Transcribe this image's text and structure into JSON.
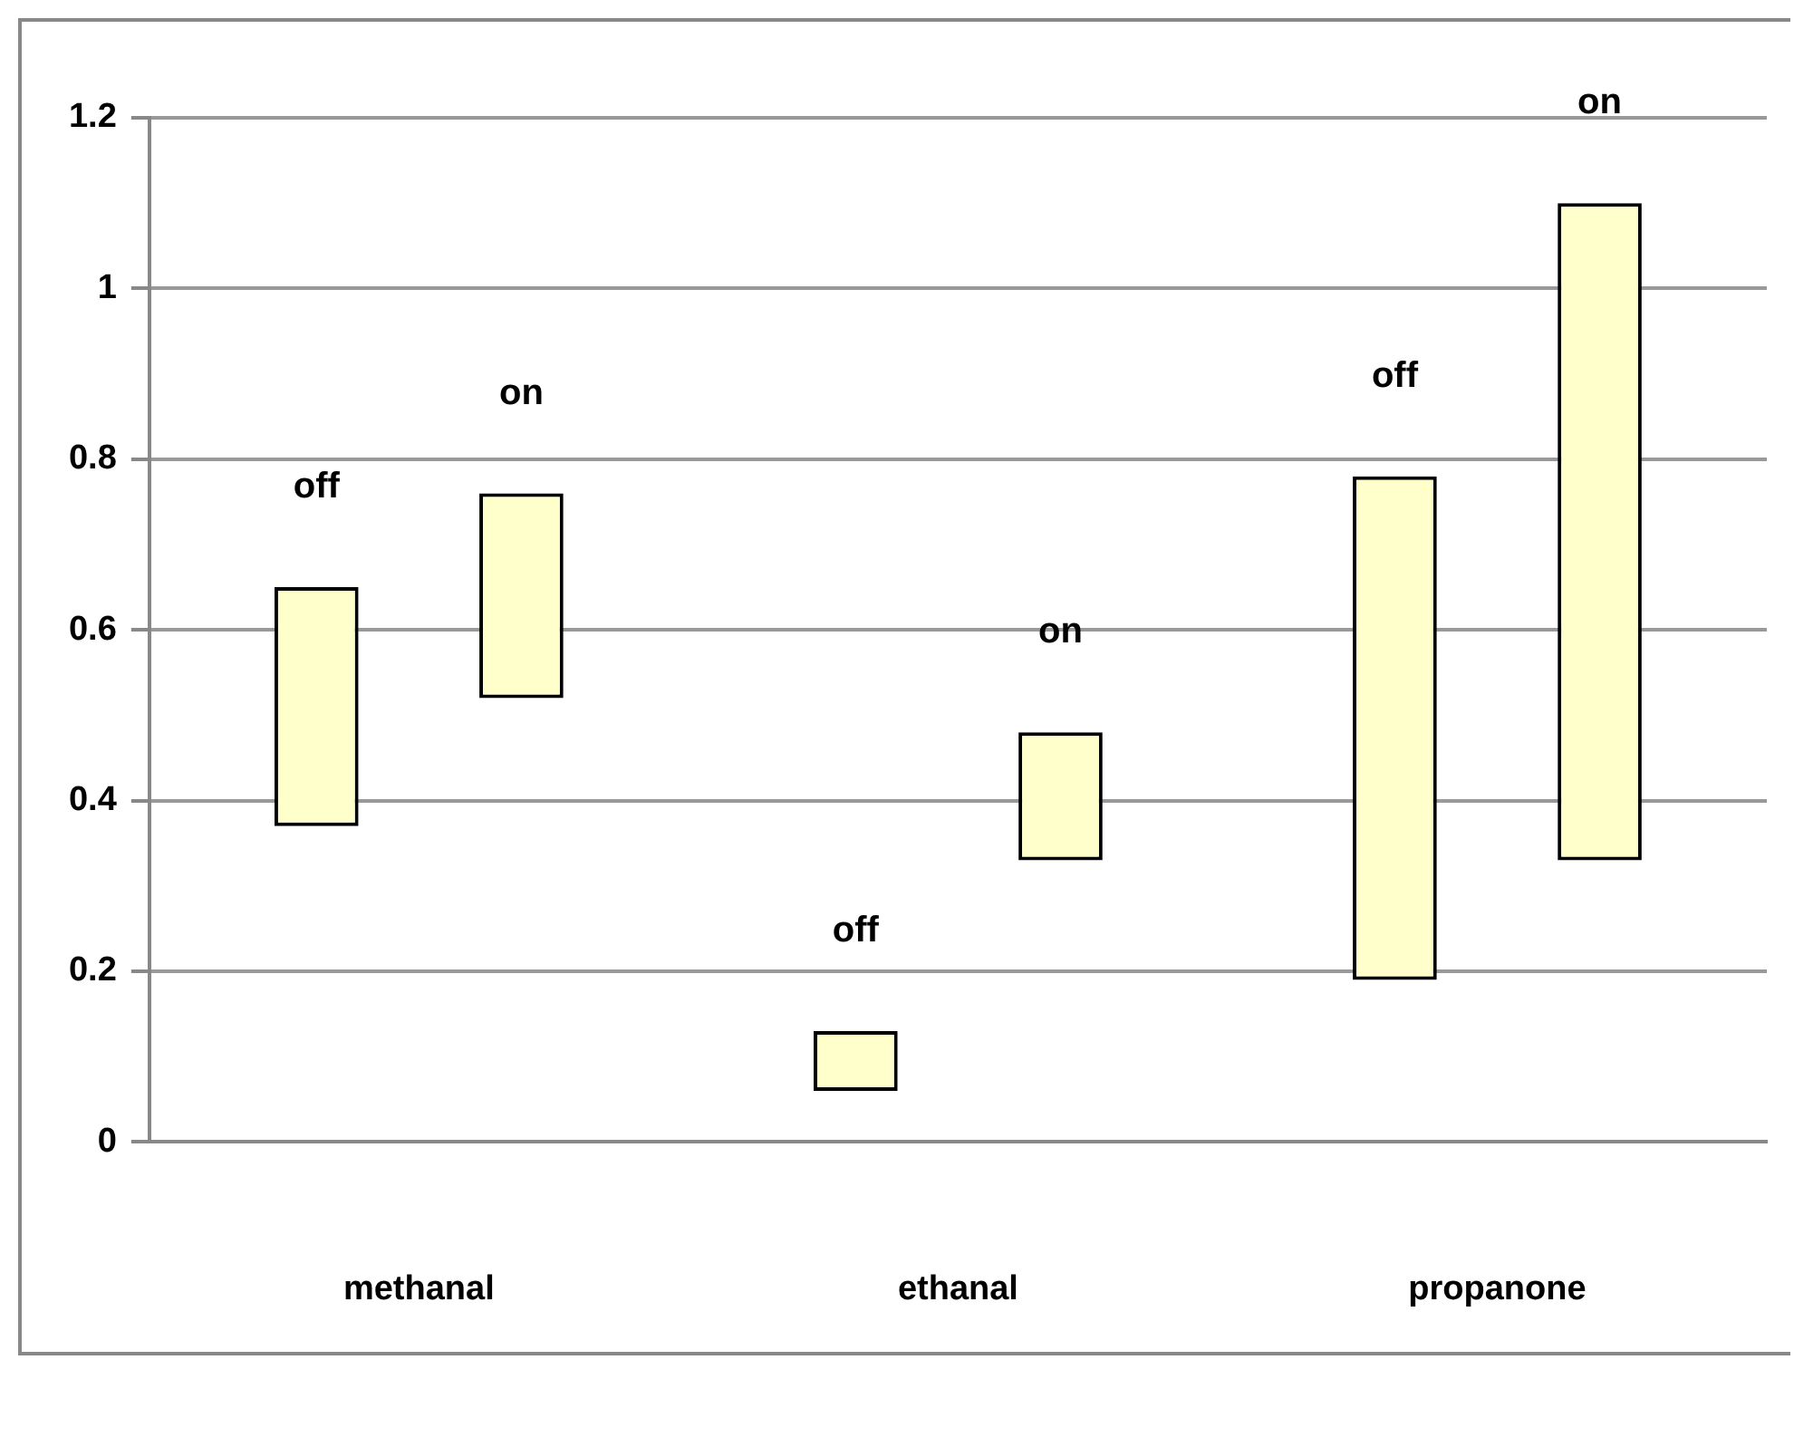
{
  "chart_data": {
    "type": "bar",
    "categories": [
      "methanal",
      "ethanal",
      "propanone"
    ],
    "series": [
      {
        "name": "off",
        "color": "#ffffcc",
        "base": [
          0.37,
          0.06,
          0.19
        ],
        "values": [
          0.28,
          0.07,
          0.59
        ]
      },
      {
        "name": "on",
        "color": "#ffffcc",
        "base": [
          0.52,
          0.33,
          0.33
        ],
        "values": [
          0.24,
          0.15,
          0.77
        ]
      }
    ],
    "ylim": [
      0,
      1.2
    ],
    "yticks": [
      0,
      0.2,
      0.4,
      0.6,
      0.8,
      1,
      1.2
    ],
    "grid": "y",
    "legend": false
  }
}
